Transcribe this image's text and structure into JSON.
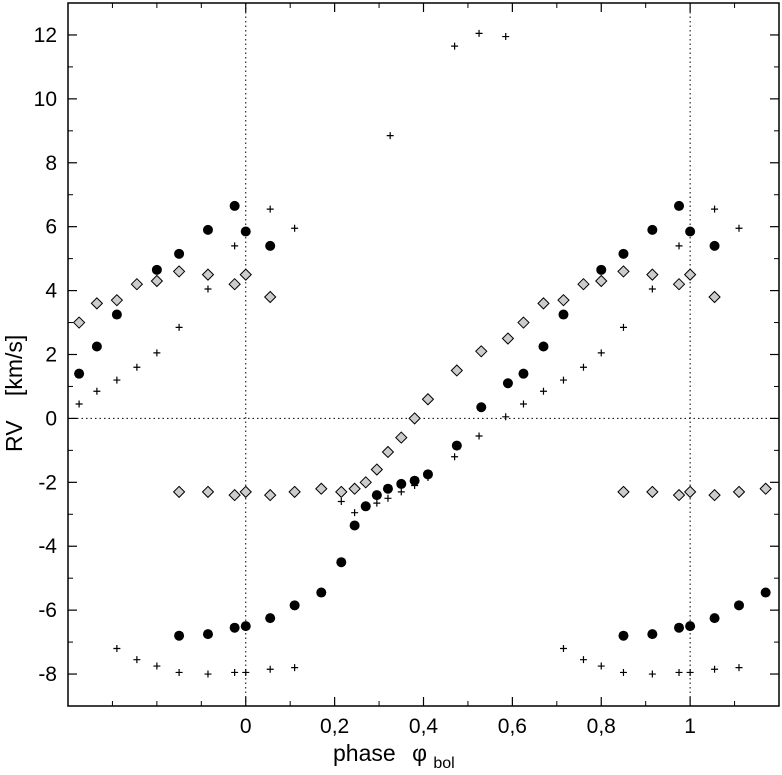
{
  "chart_data": {
    "type": "scatter",
    "xlabel": {
      "main": "phase",
      "symbol": "φ",
      "subscript": "bol"
    },
    "ylabel": {
      "main": "RV",
      "unit": "[km/s]"
    },
    "xlim": [
      -0.4,
      1.2
    ],
    "ylim": [
      -9,
      13
    ],
    "x_ticks": [
      {
        "value": 0,
        "label": "0"
      },
      {
        "value": 0.2,
        "label": "0,2"
      },
      {
        "value": 0.4,
        "label": "0,4"
      },
      {
        "value": 0.6,
        "label": "0,6"
      },
      {
        "value": 0.8,
        "label": "0,8"
      },
      {
        "value": 1,
        "label": "1"
      }
    ],
    "x_minor_ticks": [
      -0.3,
      -0.2,
      -0.1,
      0.1,
      0.3,
      0.5,
      0.7,
      0.9,
      1.1
    ],
    "y_ticks": [
      {
        "value": -8,
        "label": "-8"
      },
      {
        "value": -6,
        "label": "-6"
      },
      {
        "value": -4,
        "label": "-4"
      },
      {
        "value": -2,
        "label": "-2"
      },
      {
        "value": 0,
        "label": "0"
      },
      {
        "value": 2,
        "label": "2"
      },
      {
        "value": 4,
        "label": "4"
      },
      {
        "value": 6,
        "label": "6"
      },
      {
        "value": 8,
        "label": "8"
      },
      {
        "value": 10,
        "label": "10"
      },
      {
        "value": 12,
        "label": "12"
      }
    ],
    "y_minor_ticks": [
      -9,
      -7,
      -5,
      -3,
      -1,
      1,
      3,
      5,
      7,
      9,
      11,
      13
    ],
    "reference_lines": {
      "x": [
        0,
        1
      ],
      "y": [
        0
      ],
      "style": "dotted"
    },
    "grid": false,
    "series": [
      {
        "marker": "filled-circle",
        "color": "#000000",
        "points": [
          {
            "x": -0.375,
            "y": 1.4
          },
          {
            "x": -0.335,
            "y": 2.25
          },
          {
            "x": -0.29,
            "y": 3.25
          },
          {
            "x": -0.2,
            "y": 4.65
          },
          {
            "x": -0.15,
            "y": 5.15
          },
          {
            "x": -0.085,
            "y": 5.9
          },
          {
            "x": -0.025,
            "y": 6.65
          },
          {
            "x": 0.0,
            "y": 5.85
          },
          {
            "x": 0.055,
            "y": 5.4
          },
          {
            "x": 0.475,
            "y": -0.85
          },
          {
            "x": 0.53,
            "y": 0.35
          },
          {
            "x": 0.59,
            "y": 1.1
          },
          {
            "x": 0.625,
            "y": 1.4
          },
          {
            "x": 0.67,
            "y": 2.25
          },
          {
            "x": 0.715,
            "y": 3.25
          },
          {
            "x": 0.8,
            "y": 4.65
          },
          {
            "x": 0.85,
            "y": 5.15
          },
          {
            "x": 0.915,
            "y": 5.9
          },
          {
            "x": 0.975,
            "y": 6.65
          },
          {
            "x": 1.0,
            "y": 5.85
          },
          {
            "x": 1.055,
            "y": 5.4
          },
          {
            "x": -0.15,
            "y": -6.8
          },
          {
            "x": -0.085,
            "y": -6.75
          },
          {
            "x": -0.025,
            "y": -6.55
          },
          {
            "x": 0.0,
            "y": -6.5
          },
          {
            "x": 0.055,
            "y": -6.25
          },
          {
            "x": 0.11,
            "y": -5.85
          },
          {
            "x": 0.17,
            "y": -5.45
          },
          {
            "x": 0.215,
            "y": -4.5
          },
          {
            "x": 0.245,
            "y": -3.35
          },
          {
            "x": 0.27,
            "y": -2.75
          },
          {
            "x": 0.295,
            "y": -2.4
          },
          {
            "x": 0.32,
            "y": -2.2
          },
          {
            "x": 0.35,
            "y": -2.05
          },
          {
            "x": 0.38,
            "y": -1.95
          },
          {
            "x": 0.41,
            "y": -1.75
          },
          {
            "x": 0.85,
            "y": -6.8
          },
          {
            "x": 0.915,
            "y": -6.75
          },
          {
            "x": 0.975,
            "y": -6.55
          },
          {
            "x": 1.0,
            "y": -6.5
          },
          {
            "x": 1.055,
            "y": -6.25
          },
          {
            "x": 1.11,
            "y": -5.85
          },
          {
            "x": 1.17,
            "y": -5.45
          }
        ]
      },
      {
        "marker": "diamond",
        "color": "#cccccc",
        "points": [
          {
            "x": -0.375,
            "y": 3.0
          },
          {
            "x": -0.335,
            "y": 3.6
          },
          {
            "x": -0.29,
            "y": 3.7
          },
          {
            "x": -0.245,
            "y": 4.2
          },
          {
            "x": -0.2,
            "y": 4.3
          },
          {
            "x": -0.15,
            "y": 4.6
          },
          {
            "x": -0.085,
            "y": 4.5
          },
          {
            "x": -0.025,
            "y": 4.2
          },
          {
            "x": 0.0,
            "y": 4.5
          },
          {
            "x": 0.055,
            "y": 3.8
          },
          {
            "x": 0.27,
            "y": -2.0
          },
          {
            "x": 0.295,
            "y": -1.6
          },
          {
            "x": 0.32,
            "y": -1.05
          },
          {
            "x": 0.35,
            "y": -0.6
          },
          {
            "x": 0.38,
            "y": 0.0
          },
          {
            "x": 0.41,
            "y": 0.6
          },
          {
            "x": 0.475,
            "y": 1.5
          },
          {
            "x": 0.53,
            "y": 2.1
          },
          {
            "x": 0.59,
            "y": 2.5
          },
          {
            "x": 0.625,
            "y": 3.0
          },
          {
            "x": 0.67,
            "y": 3.6
          },
          {
            "x": 0.715,
            "y": 3.7
          },
          {
            "x": 0.76,
            "y": 4.2
          },
          {
            "x": 0.8,
            "y": 4.3
          },
          {
            "x": 0.85,
            "y": 4.6
          },
          {
            "x": 0.915,
            "y": 4.5
          },
          {
            "x": 0.975,
            "y": 4.2
          },
          {
            "x": 1.0,
            "y": 4.5
          },
          {
            "x": 1.055,
            "y": 3.8
          },
          {
            "x": -0.15,
            "y": -2.3
          },
          {
            "x": -0.085,
            "y": -2.3
          },
          {
            "x": -0.025,
            "y": -2.4
          },
          {
            "x": 0.0,
            "y": -2.3
          },
          {
            "x": 0.055,
            "y": -2.4
          },
          {
            "x": 0.11,
            "y": -2.3
          },
          {
            "x": 0.17,
            "y": -2.2
          },
          {
            "x": 0.215,
            "y": -2.3
          },
          {
            "x": 0.245,
            "y": -2.2
          },
          {
            "x": 0.85,
            "y": -2.3
          },
          {
            "x": 0.915,
            "y": -2.3
          },
          {
            "x": 0.975,
            "y": -2.4
          },
          {
            "x": 1.0,
            "y": -2.3
          },
          {
            "x": 1.055,
            "y": -2.4
          },
          {
            "x": 1.11,
            "y": -2.3
          },
          {
            "x": 1.17,
            "y": -2.2
          }
        ]
      },
      {
        "marker": "plus",
        "color": "#000000",
        "points": [
          {
            "x": -0.375,
            "y": 0.45
          },
          {
            "x": -0.335,
            "y": 0.85
          },
          {
            "x": -0.29,
            "y": 1.2
          },
          {
            "x": -0.245,
            "y": 1.6
          },
          {
            "x": -0.2,
            "y": 2.05
          },
          {
            "x": -0.15,
            "y": 2.85
          },
          {
            "x": -0.085,
            "y": 4.05
          },
          {
            "x": -0.025,
            "y": 5.4
          },
          {
            "x": 0.055,
            "y": 6.55
          },
          {
            "x": 0.11,
            "y": 5.95
          },
          {
            "x": 0.325,
            "y": 8.85
          },
          {
            "x": 0.47,
            "y": 11.65
          },
          {
            "x": 0.525,
            "y": 12.05
          },
          {
            "x": 0.585,
            "y": 11.95
          },
          {
            "x": 0.215,
            "y": -2.6
          },
          {
            "x": 0.245,
            "y": -2.95
          },
          {
            "x": 0.27,
            "y": -2.75
          },
          {
            "x": 0.295,
            "y": -2.65
          },
          {
            "x": 0.32,
            "y": -2.5
          },
          {
            "x": 0.35,
            "y": -2.3
          },
          {
            "x": 0.38,
            "y": -2.1
          },
          {
            "x": 0.41,
            "y": -1.85
          },
          {
            "x": 0.47,
            "y": -1.2
          },
          {
            "x": 0.525,
            "y": -0.55
          },
          {
            "x": 0.585,
            "y": 0.05
          },
          {
            "x": 0.625,
            "y": 0.45
          },
          {
            "x": 0.67,
            "y": 0.85
          },
          {
            "x": 0.715,
            "y": 1.2
          },
          {
            "x": 0.76,
            "y": 1.6
          },
          {
            "x": 0.8,
            "y": 2.05
          },
          {
            "x": 0.85,
            "y": 2.85
          },
          {
            "x": 0.915,
            "y": 4.05
          },
          {
            "x": 0.975,
            "y": 5.4
          },
          {
            "x": 1.055,
            "y": 6.55
          },
          {
            "x": 1.11,
            "y": 5.95
          },
          {
            "x": -0.29,
            "y": -7.2
          },
          {
            "x": -0.245,
            "y": -7.55
          },
          {
            "x": -0.2,
            "y": -7.75
          },
          {
            "x": -0.15,
            "y": -7.95
          },
          {
            "x": -0.085,
            "y": -8.0
          },
          {
            "x": -0.025,
            "y": -7.95
          },
          {
            "x": 0.0,
            "y": -7.95
          },
          {
            "x": 0.055,
            "y": -7.85
          },
          {
            "x": 0.11,
            "y": -7.8
          },
          {
            "x": 0.715,
            "y": -7.2
          },
          {
            "x": 0.76,
            "y": -7.55
          },
          {
            "x": 0.8,
            "y": -7.75
          },
          {
            "x": 0.85,
            "y": -7.95
          },
          {
            "x": 0.915,
            "y": -8.0
          },
          {
            "x": 0.975,
            "y": -7.95
          },
          {
            "x": 1.0,
            "y": -7.95
          },
          {
            "x": 1.055,
            "y": -7.85
          },
          {
            "x": 1.11,
            "y": -7.8
          }
        ]
      }
    ]
  }
}
